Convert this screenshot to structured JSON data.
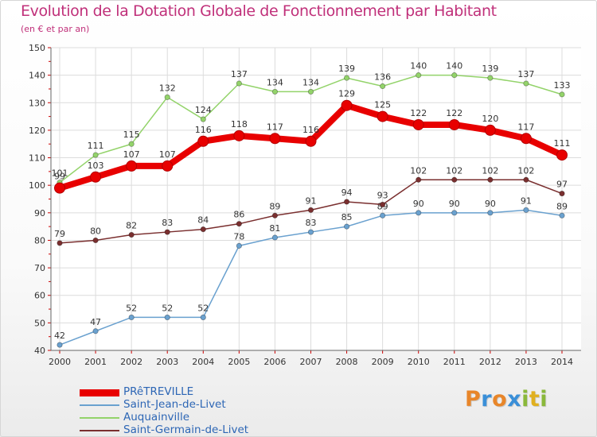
{
  "title": "Evolution de la Dotation Globale de Fonctionnement par Habitant",
  "subtitle": "(en € et par an)",
  "logo": {
    "text": "Proxiti",
    "colors": [
      "#e8862a",
      "#3a8fd8",
      "#e8862a",
      "#3a8fd8",
      "#8ab83a",
      "#e0b020",
      "#8ab83a"
    ]
  },
  "chart_data": {
    "type": "line",
    "title": "Evolution de la Dotation Globale de Fonctionnement par Habitant",
    "subtitle": "(en € et par an)",
    "x": [
      "2000",
      "2001",
      "2002",
      "2003",
      "2004",
      "2005",
      "2006",
      "2007",
      "2008",
      "2009",
      "2010",
      "2011",
      "2012",
      "2013",
      "2014"
    ],
    "ylim": [
      40,
      150
    ],
    "yticks": [
      40,
      50,
      60,
      70,
      80,
      90,
      100,
      110,
      120,
      130,
      140,
      150
    ],
    "grid": true,
    "series": [
      {
        "name": "PRêTREVILLE",
        "color": "#e80000",
        "emphasis": true,
        "values": [
          99,
          103,
          107,
          107,
          116,
          118,
          117,
          116,
          129,
          125,
          122,
          122,
          120,
          117,
          111
        ],
        "labels": [
          "99",
          "103",
          "107",
          "107",
          "116",
          "118",
          "117",
          "116",
          "129",
          "125",
          "122",
          "122",
          "120",
          "117",
          "111"
        ]
      },
      {
        "name": "Saint-Jean-de-Livet",
        "color": "#6aa1cf",
        "values": [
          42,
          47,
          52,
          52,
          52,
          78,
          81,
          83,
          85,
          89,
          90,
          90,
          90,
          91,
          89
        ],
        "labels": [
          "42",
          "47",
          "52",
          "52",
          "52",
          "78",
          "81",
          "83",
          "85",
          "89",
          "90",
          "90",
          "90",
          "91",
          "89"
        ]
      },
      {
        "name": "Auquainville",
        "color": "#93d36a",
        "values": [
          101,
          111,
          115,
          132,
          124,
          137,
          134,
          134,
          139,
          136,
          140,
          140,
          139,
          137,
          133
        ],
        "labels": [
          "101",
          "111",
          "115",
          "132",
          "124",
          "137",
          "134",
          "134",
          "139",
          "136",
          "140",
          "140",
          "139",
          "137",
          "133"
        ]
      },
      {
        "name": "Saint-Germain-de-Livet",
        "color": "#7a2f2f",
        "values": [
          79,
          80,
          82,
          83,
          84,
          86,
          89,
          91,
          94,
          93,
          102,
          102,
          102,
          102,
          97
        ],
        "labels": [
          "79",
          "80",
          "82",
          "83",
          "84",
          "86",
          "89",
          "91",
          "94",
          "93",
          "102",
          "102",
          "102",
          "102",
          "97"
        ]
      }
    ]
  }
}
